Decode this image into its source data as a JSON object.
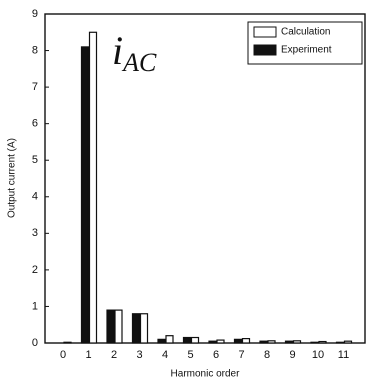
{
  "chart_data": {
    "type": "bar",
    "x_label": "Harmonic order",
    "y_label": "Output current (A)",
    "annotation": {
      "main": "i",
      "subscript": "AC"
    },
    "categories": [
      "0",
      "1",
      "2",
      "3",
      "4",
      "5",
      "6",
      "7",
      "8",
      "9",
      "10",
      "11"
    ],
    "series": [
      {
        "name": "Calculation",
        "color": "#ffffff",
        "values": [
          0.02,
          8.5,
          0.9,
          0.8,
          0.2,
          0.15,
          0.08,
          0.12,
          0.06,
          0.06,
          0.04,
          0.05
        ]
      },
      {
        "name": "Experiment",
        "color": "#111111",
        "values": [
          0,
          8.1,
          0.9,
          0.8,
          0.1,
          0.15,
          0.05,
          0.1,
          0.05,
          0.05,
          0.02,
          0.02
        ]
      }
    ],
    "ylim": [
      0,
      9
    ],
    "yticks": [
      0,
      1,
      2,
      3,
      4,
      5,
      6,
      7,
      8,
      9
    ],
    "legend": "upper-right"
  }
}
